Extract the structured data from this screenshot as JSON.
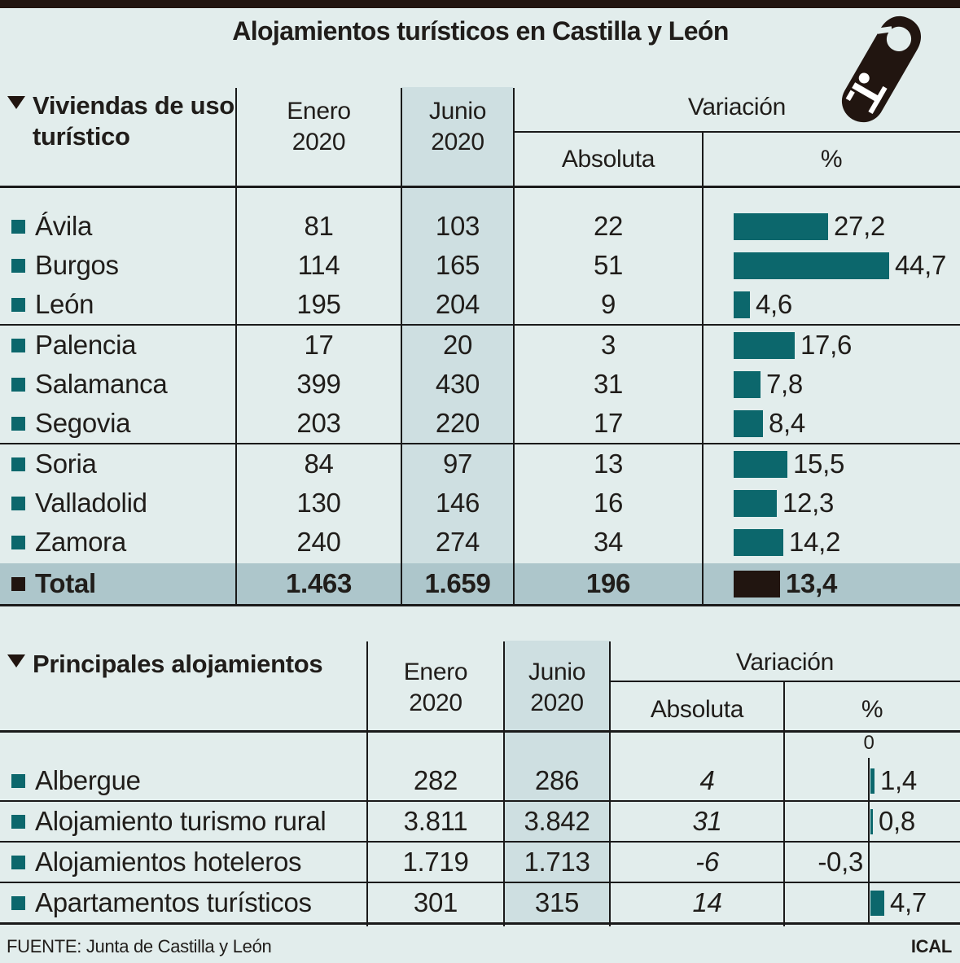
{
  "title": "Alojamientos turísticos en Castilla y León",
  "colors": {
    "background": "#e2edec",
    "junio_column_shade": "#cedfe1",
    "total_row_background": "#adc6cb",
    "bar_teal": "#0c676c",
    "dark": "#211510",
    "line": "#1a1a1a"
  },
  "headers": {
    "enero": [
      "Enero",
      "2020"
    ],
    "junio": [
      "Junio",
      "2020"
    ],
    "variacion": "Variación",
    "absoluta": "Absoluta",
    "pct": "%"
  },
  "table1": {
    "section_title": "Viviendas de uso turístico",
    "rows": [
      {
        "label": "Ávila",
        "enero": "81",
        "junio": "103",
        "abs": "22",
        "pct": 27.2,
        "pct_label": "27,2"
      },
      {
        "label": "Burgos",
        "enero": "114",
        "junio": "165",
        "abs": "51",
        "pct": 44.7,
        "pct_label": "44,7"
      },
      {
        "label": "León",
        "enero": "195",
        "junio": "204",
        "abs": "9",
        "pct": 4.6,
        "pct_label": "4,6"
      },
      {
        "label": "Palencia",
        "enero": "17",
        "junio": "20",
        "abs": "3",
        "pct": 17.6,
        "pct_label": "17,6"
      },
      {
        "label": "Salamanca",
        "enero": "399",
        "junio": "430",
        "abs": "31",
        "pct": 7.8,
        "pct_label": "7,8"
      },
      {
        "label": "Segovia",
        "enero": "203",
        "junio": "220",
        "abs": "17",
        "pct": 8.4,
        "pct_label": "8,4"
      },
      {
        "label": "Soria",
        "enero": "84",
        "junio": "97",
        "abs": "13",
        "pct": 15.5,
        "pct_label": "15,5"
      },
      {
        "label": "Valladolid",
        "enero": "130",
        "junio": "146",
        "abs": "16",
        "pct": 12.3,
        "pct_label": "12,3"
      },
      {
        "label": "Zamora",
        "enero": "240",
        "junio": "274",
        "abs": "34",
        "pct": 14.2,
        "pct_label": "14,2"
      }
    ],
    "total": {
      "label": "Total",
      "enero": "1.463",
      "junio": "1.659",
      "abs": "196",
      "pct": 13.4,
      "pct_label": "13,4"
    }
  },
  "table2": {
    "section_title": "Principales alojamientos",
    "axis_zero_label": "0",
    "rows": [
      {
        "label": "Albergue",
        "enero": "282",
        "junio": "286",
        "abs": "4",
        "pct": 1.4,
        "pct_label": "1,4"
      },
      {
        "label": "Alojamiento turismo rural",
        "enero": "3.811",
        "junio": "3.842",
        "abs": "31",
        "pct": 0.8,
        "pct_label": "0,8"
      },
      {
        "label": "Alojamientos hoteleros",
        "enero": "1.719",
        "junio": "1.713",
        "abs": "-6",
        "pct": -0.3,
        "pct_label": "-0,3"
      },
      {
        "label": "Apartamentos turísticos",
        "enero": "301",
        "junio": "315",
        "abs": "14",
        "pct": 4.7,
        "pct_label": "4,7"
      }
    ]
  },
  "footer": {
    "source": "FUENTE: Junta de Castilla y León",
    "credit": "ICAL"
  },
  "chart_data": [
    {
      "type": "table",
      "title": "Viviendas de uso turístico",
      "categories": [
        "Ávila",
        "Burgos",
        "León",
        "Palencia",
        "Salamanca",
        "Segovia",
        "Soria",
        "Valladolid",
        "Zamora"
      ],
      "series": [
        {
          "name": "Enero 2020",
          "values": [
            81,
            114,
            195,
            17,
            399,
            203,
            84,
            130,
            240
          ]
        },
        {
          "name": "Junio 2020",
          "values": [
            103,
            165,
            204,
            20,
            430,
            220,
            97,
            146,
            274
          ]
        },
        {
          "name": "Variación Absoluta",
          "values": [
            22,
            51,
            9,
            3,
            31,
            17,
            13,
            16,
            34
          ]
        },
        {
          "name": "Variación %",
          "type": "bar",
          "color": "#0c676c",
          "values": [
            27.2,
            44.7,
            4.6,
            17.6,
            7.8,
            8.4,
            15.5,
            12.3,
            14.2
          ]
        }
      ],
      "total": {
        "label": "Total",
        "enero_2020": 1463,
        "junio_2020": 1659,
        "variacion_absoluta": 196,
        "variacion_pct": 13.4
      },
      "legend_position": "none",
      "grid": false
    },
    {
      "type": "table",
      "title": "Principales alojamientos",
      "categories": [
        "Albergue",
        "Alojamiento turismo rural",
        "Alojamientos hoteleros",
        "Apartamentos turísticos"
      ],
      "series": [
        {
          "name": "Enero 2020",
          "values": [
            282,
            3811,
            1719,
            301
          ]
        },
        {
          "name": "Junio 2020",
          "values": [
            286,
            3842,
            1713,
            315
          ]
        },
        {
          "name": "Variación Absoluta",
          "values": [
            4,
            31,
            -6,
            14
          ]
        },
        {
          "name": "Variación %",
          "type": "bar",
          "color": "#0c676c",
          "axis_zero_label": "0",
          "values": [
            1.4,
            0.8,
            -0.3,
            4.7
          ]
        }
      ],
      "legend_position": "none",
      "grid": false
    }
  ]
}
